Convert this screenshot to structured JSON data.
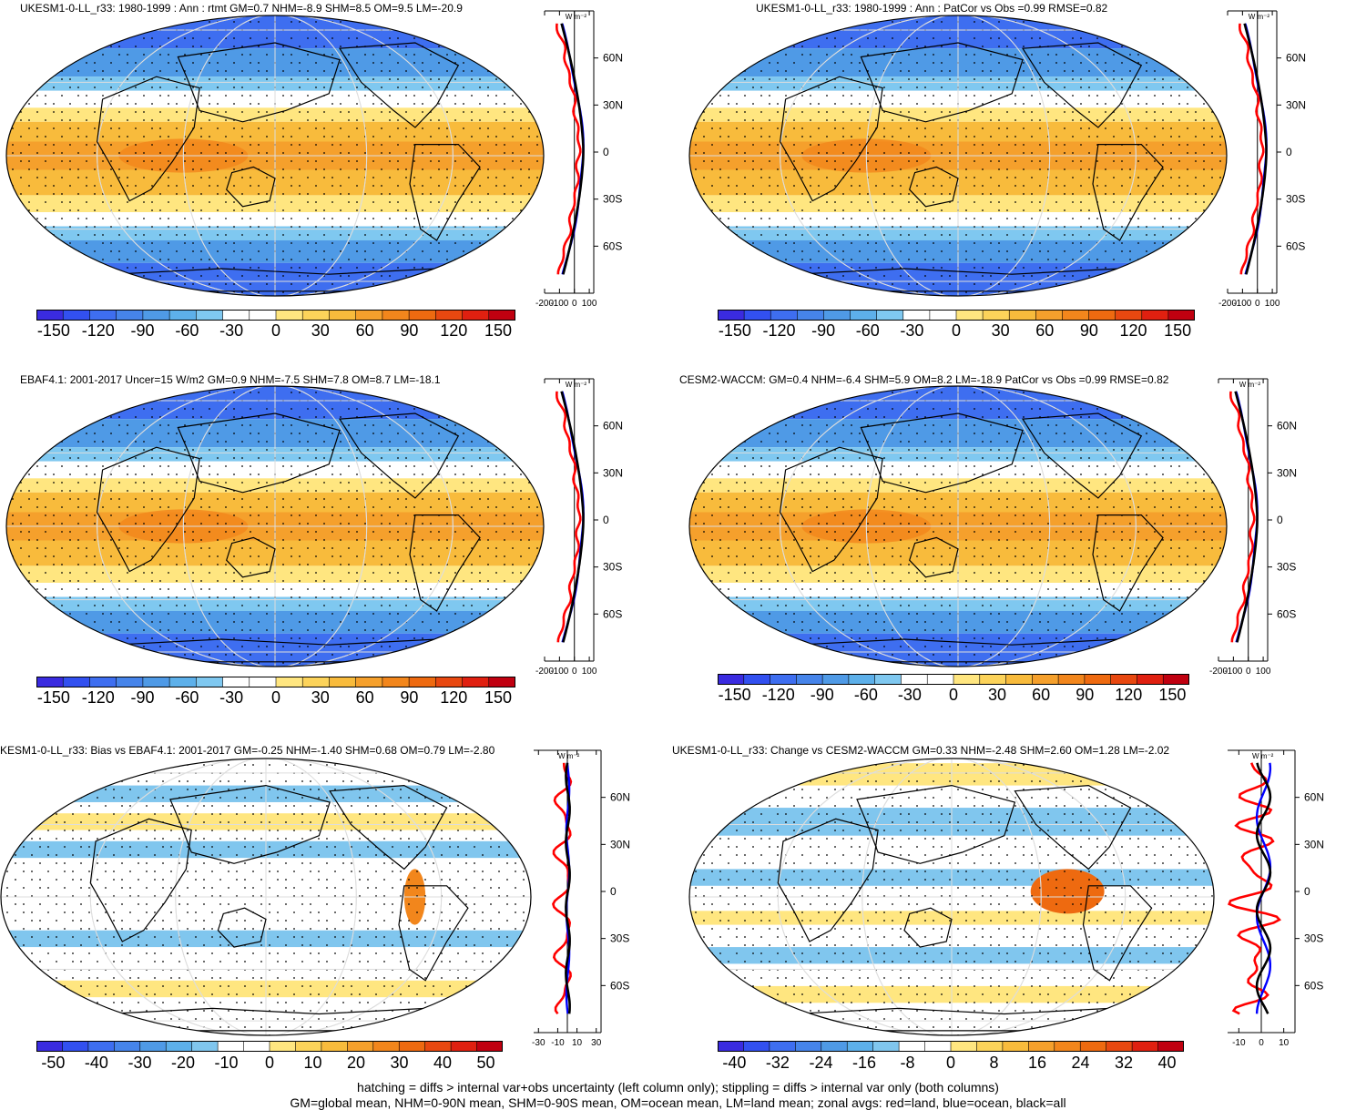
{
  "panels": [
    {
      "title": "UKESM1-0-LL_r33: 1980-1999 : Ann : rtmt GM=0.7 NHM=-8.9 SHM=8.5 OM=9.5 LM=-20.9",
      "palette": "full",
      "lines": "main",
      "xticks": [
        "-200",
        "-100",
        "0",
        "100"
      ]
    },
    {
      "title": "UKESM1-0-LL_r33: 1980-1999 : Ann : PatCor vs Obs =0.99 RMSE=0.82",
      "palette": "full",
      "lines": "main",
      "xticks": [
        "-200",
        "-100",
        "0",
        "100"
      ]
    },
    {
      "title": "EBAF4.1: 2001-2017 Uncer=15 W/m2 GM=0.9 NHM=-7.5 SHM=7.8 OM=8.7 LM=-18.1",
      "palette": "full",
      "lines": "main",
      "xticks": [
        "-200",
        "-100",
        "0",
        "100"
      ]
    },
    {
      "title": "CESM2-WACCM: GM=0.4 NHM=-6.4 SHM=5.9 OM=8.2 LM=-18.9 PatCor vs Obs =0.99 RMSE=0.82",
      "palette": "full",
      "lines": "main",
      "xticks": [
        "-200",
        "-100",
        "0",
        "100"
      ]
    },
    {
      "title": "KESM1-0-LL_r33: Bias vs EBAF4.1: 2001-2017 GM=-0.25 NHM=-1.40 SHM=0.68 OM=0.79 LM=-2.80",
      "palette": "diff",
      "lines": "bias",
      "xticks": [
        "-30",
        "-10",
        "10",
        "30"
      ]
    },
    {
      "title": "UKESM1-0-LL_r33: Change vs CESM2-WACCM GM=0.33 NHM=-2.48 SHM=2.60 OM=1.28 LM=-2.02",
      "palette": "diff",
      "lines": "change",
      "xticks": [
        "-10",
        "0",
        "10"
      ]
    }
  ],
  "lat_labels": [
    "60N",
    "30N",
    "0",
    "30S",
    "60S"
  ],
  "unit_label": "W m⁻²",
  "colorbars": {
    "full": [
      "-150",
      "-120",
      "-90",
      "-60",
      "-30",
      "0",
      "30",
      "60",
      "90",
      "120",
      "150"
    ],
    "bias": [
      "-50",
      "-40",
      "-30",
      "-20",
      "-10",
      "0",
      "10",
      "20",
      "30",
      "40",
      "50"
    ],
    "change": [
      "-40",
      "-32",
      "-24",
      "-16",
      "-8",
      "0",
      "8",
      "16",
      "24",
      "32",
      "40"
    ]
  },
  "colors": {
    "land_line": "#ff0000",
    "ocean_line": "#0000ff",
    "all_line": "#000000"
  },
  "footer": {
    "line1": "hatching = diffs > internal var+obs uncertainty (left column only); stippling = diffs > internal var only (both columns)",
    "line2": "GM=global mean, NHM=0-90N mean, SHM=0-90S mean, OM=ocean mean, LM=land mean; zonal avgs: red=land, blue=ocean, black=all"
  }
}
